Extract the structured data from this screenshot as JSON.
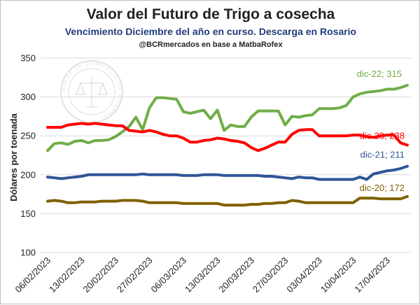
{
  "chart_data": {
    "type": "line",
    "title": "Valor del Futuro de Trigo a cosecha",
    "subtitle": "Vencimiento Diciembre del año en curso. Descarga en Rosario",
    "source": "@BCRmercados en base a MatbaRofex",
    "xlabel": "",
    "ylabel": "Dólares por toenada",
    "ylim": [
      100,
      350
    ],
    "yticks": [
      100,
      150,
      200,
      250,
      300,
      350
    ],
    "grid": true,
    "x": [
      "06/02/2023",
      "07/02/2023",
      "08/02/2023",
      "09/02/2023",
      "10/02/2023",
      "13/02/2023",
      "14/02/2023",
      "15/02/2023",
      "16/02/2023",
      "17/02/2023",
      "20/02/2023",
      "21/02/2023",
      "22/02/2023",
      "23/02/2023",
      "24/02/2023",
      "27/02/2023",
      "28/02/2023",
      "01/03/2023",
      "02/03/2023",
      "03/03/2023",
      "06/03/2023",
      "07/03/2023",
      "08/03/2023",
      "09/03/2023",
      "10/03/2023",
      "13/03/2023",
      "14/03/2023",
      "15/03/2023",
      "16/03/2023",
      "17/03/2023",
      "20/03/2023",
      "21/03/2023",
      "22/03/2023",
      "23/03/2023",
      "24/03/2023",
      "27/03/2023",
      "28/03/2023",
      "29/03/2023",
      "30/03/2023",
      "31/03/2023",
      "03/04/2023",
      "04/04/2023",
      "05/04/2023",
      "06/04/2023",
      "07/04/2023",
      "10/04/2023",
      "11/04/2023",
      "12/04/2023",
      "13/04/2023",
      "14/04/2023",
      "17/04/2023",
      "18/04/2023",
      "19/04/2023",
      "20/04/2023"
    ],
    "xtick_labels": [
      "06/02/2023",
      "13/02/2023",
      "20/02/2023",
      "27/02/2023",
      "06/03/2023",
      "13/03/2023",
      "20/03/2023",
      "27/03/2023",
      "03/04/2023",
      "10/04/2023",
      "17/04/2023"
    ],
    "series": [
      {
        "name": "dic-22",
        "label": "dic-22; 315",
        "color": "#70ad47",
        "values": [
          231,
          240,
          241,
          239,
          243,
          244,
          241,
          244,
          244,
          245,
          249,
          255,
          262,
          274,
          258,
          286,
          299,
          299,
          298,
          297,
          281,
          279,
          281,
          283,
          272,
          283,
          257,
          264,
          262,
          262,
          274,
          282,
          282,
          282,
          282,
          264,
          275,
          274,
          276,
          277,
          285,
          285,
          285,
          286,
          289,
          300,
          304,
          306,
          307,
          308,
          310,
          310,
          312,
          315
        ]
      },
      {
        "name": "dic-23",
        "label": "dic-23; 238",
        "color": "#ff0000",
        "values": [
          261,
          261,
          261,
          264,
          265,
          266,
          265,
          266,
          265,
          264,
          263,
          263,
          257,
          256,
          255,
          257,
          255,
          252,
          250,
          250,
          247,
          242,
          242,
          244,
          245,
          247,
          246,
          244,
          243,
          241,
          235,
          231,
          234,
          238,
          242,
          242,
          252,
          257,
          258,
          258,
          250,
          250,
          250,
          250,
          250,
          251,
          251,
          249,
          248,
          250,
          251,
          251,
          241,
          238
        ]
      },
      {
        "name": "dic-21",
        "label": "dic-21; 211",
        "color": "#2f5597",
        "values": [
          197,
          196,
          195,
          196,
          197,
          198,
          200,
          200,
          200,
          200,
          200,
          200,
          200,
          200,
          201,
          200,
          200,
          200,
          200,
          200,
          199,
          199,
          199,
          200,
          200,
          200,
          199,
          199,
          199,
          199,
          199,
          199,
          198,
          198,
          197,
          196,
          195,
          197,
          196,
          196,
          194,
          194,
          194,
          194,
          194,
          194,
          197,
          194,
          201,
          203,
          205,
          206,
          208,
          211
        ]
      },
      {
        "name": "dic-20",
        "label": "dic-20; 172",
        "color": "#806000",
        "values": [
          166,
          167,
          166,
          164,
          164,
          165,
          165,
          165,
          166,
          166,
          166,
          167,
          167,
          167,
          166,
          164,
          164,
          164,
          164,
          164,
          163,
          163,
          163,
          163,
          163,
          163,
          161,
          161,
          161,
          161,
          162,
          162,
          163,
          163,
          164,
          164,
          167,
          166,
          164,
          164,
          164,
          164,
          164,
          164,
          164,
          164,
          170,
          170,
          170,
          169,
          169,
          169,
          169,
          172
        ]
      }
    ]
  },
  "watermark": {
    "text": "BOLSA DE COMERCIO DE ROSARIO"
  }
}
